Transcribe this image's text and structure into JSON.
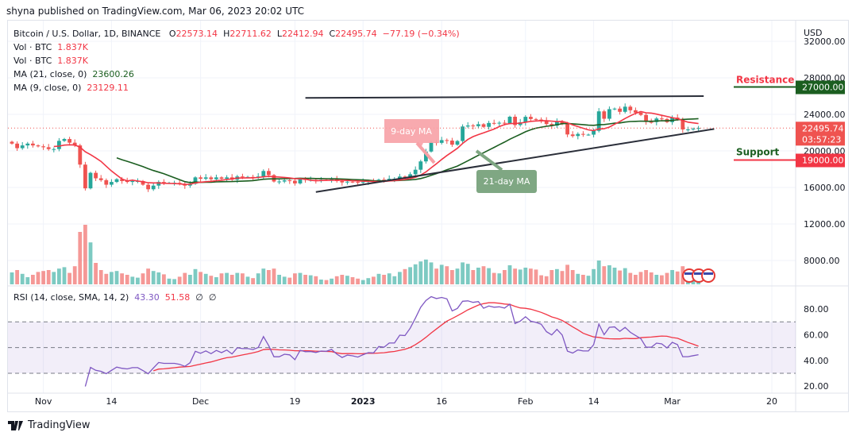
{
  "publish_line": "shyna published on TradingView.com, Mar 06, 2023 20:02 UTC",
  "legend": {
    "symbol": "Bitcoin / U.S. Dollar, 1D, BINANCE",
    "o_label": "O",
    "o": "22573.14",
    "h_label": "H",
    "h": "22711.62",
    "l_label": "L",
    "l": "22412.94",
    "c_label": "C",
    "c": "22495.74",
    "change": "−77.19 (−0.34%)",
    "vol1_label": "Vol · BTC",
    "vol1": "1.837K",
    "vol2_label": "Vol · BTC",
    "vol2": "1.837K",
    "ma21_label": "MA (21, close, 0)",
    "ma21": "23600.26",
    "ma9_label": "MA (9, close, 0)",
    "ma9": "23129.11",
    "rsi_label": "RSI (14, close, SMA, 14, 2)",
    "rsi": "43.30",
    "rsi_sma": "51.58",
    "rsi_extra1": "∅",
    "rsi_extra2": "∅"
  },
  "footer": {
    "brand": "TradingView"
  },
  "colors": {
    "up": "#26a69a",
    "down": "#ef5350",
    "ma9": "#f23645",
    "ma21": "#1b5e20",
    "rsi": "#7e57c2",
    "rsi_sma": "#f23645",
    "resistance": "#1b5e20",
    "support": "#f23645"
  },
  "chart_data": {
    "type": "candlestick",
    "currency_label": "USD",
    "x_range": [
      "2022-10-26",
      "2023-03-06"
    ],
    "price_ticks": [
      "32000.00",
      "28000.00",
      "24000.00",
      "20000.00",
      "16000.00",
      "12000.00",
      "8000.00"
    ],
    "time_ticks": [
      {
        "label": "Nov",
        "date": "2022-11-01"
      },
      {
        "label": "14",
        "date": "2022-11-14"
      },
      {
        "label": "Dec",
        "date": "2022-12-01"
      },
      {
        "label": "19",
        "date": "2022-12-19"
      },
      {
        "label": "2023",
        "date": "2023-01-01"
      },
      {
        "label": "16",
        "date": "2023-01-16"
      },
      {
        "label": "Feb",
        "date": "2023-02-01"
      },
      {
        "label": "14",
        "date": "2023-02-14"
      },
      {
        "label": "Mar",
        "date": "2023-03-01"
      },
      {
        "label": "20",
        "date": "2023-03-20"
      }
    ],
    "closes": [
      20800,
      20300,
      20600,
      20800,
      20600,
      20500,
      20400,
      20200,
      20200,
      21100,
      21300,
      20900,
      20600,
      18500,
      15900,
      17600,
      17000,
      16800,
      16300,
      16600,
      16900,
      16700,
      16600,
      16700,
      16700,
      16300,
      15800,
      16200,
      16600,
      16500,
      16500,
      16500,
      16400,
      16200,
      16400,
      17100,
      16950,
      17100,
      16900,
      17100,
      16950,
      17100,
      16850,
      17200,
      17150,
      17150,
      17100,
      17200,
      17800,
      17350,
      16650,
      16650,
      16780,
      16740,
      16440,
      16900,
      16820,
      16830,
      16780,
      16840,
      16830,
      16900,
      16700,
      16550,
      16630,
      16600,
      16550,
      16620,
      16680,
      16670,
      16850,
      16830,
      16950,
      16950,
      17190,
      17180,
      17440,
      17940,
      18850,
      19930,
      20950,
      20880,
      21180,
      21130,
      20680,
      21080,
      22670,
      22780,
      22710,
      22920,
      22630,
      23060,
      23010,
      23080,
      23030,
      23740,
      22830,
      23130,
      23730,
      23490,
      23430,
      23330,
      22940,
      22760,
      23260,
      22940,
      21800,
      21630,
      21860,
      21780,
      21780,
      22200,
      24330,
      23520,
      24570,
      24630,
      24280,
      24840,
      24450,
      24190,
      23940,
      23170,
      23160,
      23550,
      23490,
      23150,
      23650,
      23470,
      22350,
      22350,
      22430,
      22495.74
    ],
    "volume_k": [
      250,
      300,
      220,
      150,
      200,
      260,
      280,
      300,
      260,
      330,
      360,
      240,
      380,
      1100,
      1250,
      880,
      450,
      300,
      220,
      260,
      280,
      230,
      200,
      160,
      140,
      230,
      330,
      280,
      250,
      210,
      120,
      110,
      160,
      240,
      200,
      320,
      260,
      220,
      180,
      150,
      230,
      240,
      200,
      240,
      230,
      160,
      130,
      230,
      330,
      300,
      330,
      200,
      160,
      140,
      230,
      240,
      200,
      190,
      170,
      100,
      90,
      120,
      170,
      200,
      180,
      150,
      120,
      90,
      130,
      160,
      220,
      200,
      230,
      170,
      260,
      320,
      360,
      420,
      480,
      520,
      460,
      330,
      410,
      380,
      300,
      330,
      460,
      430,
      300,
      350,
      380,
      340,
      240,
      230,
      300,
      400,
      330,
      310,
      350,
      330,
      310,
      190,
      170,
      300,
      320,
      280,
      410,
      300,
      220,
      200,
      180,
      320,
      500,
      380,
      400,
      350,
      290,
      340,
      240,
      200,
      260,
      300,
      250,
      200,
      190,
      240,
      300,
      270,
      380,
      200,
      150,
      110
    ],
    "ma_periods": [
      9,
      21
    ],
    "rsi_period": 14,
    "rsi_sma_period": 14,
    "rsi_ticks": [
      "80.00",
      "60.00",
      "40.00",
      "20.00"
    ],
    "rsi_bands": [
      70,
      50,
      30
    ],
    "price_labels": {
      "resistance_value": "27000.00",
      "support_value": "19000.00",
      "last": "22495.74",
      "countdown": "03:57:23"
    },
    "annotations": {
      "resistance": "Resistance",
      "support": "Support",
      "ma9_callout": "9-day MA",
      "ma21_callout": "21-day MA",
      "channel_upper": [
        [
          "2022-12-21",
          25800
        ],
        [
          "2023-03-07",
          26000
        ]
      ],
      "channel_lower": [
        [
          "2022-12-23",
          15500
        ],
        [
          "2023-03-09",
          22400
        ]
      ]
    }
  }
}
